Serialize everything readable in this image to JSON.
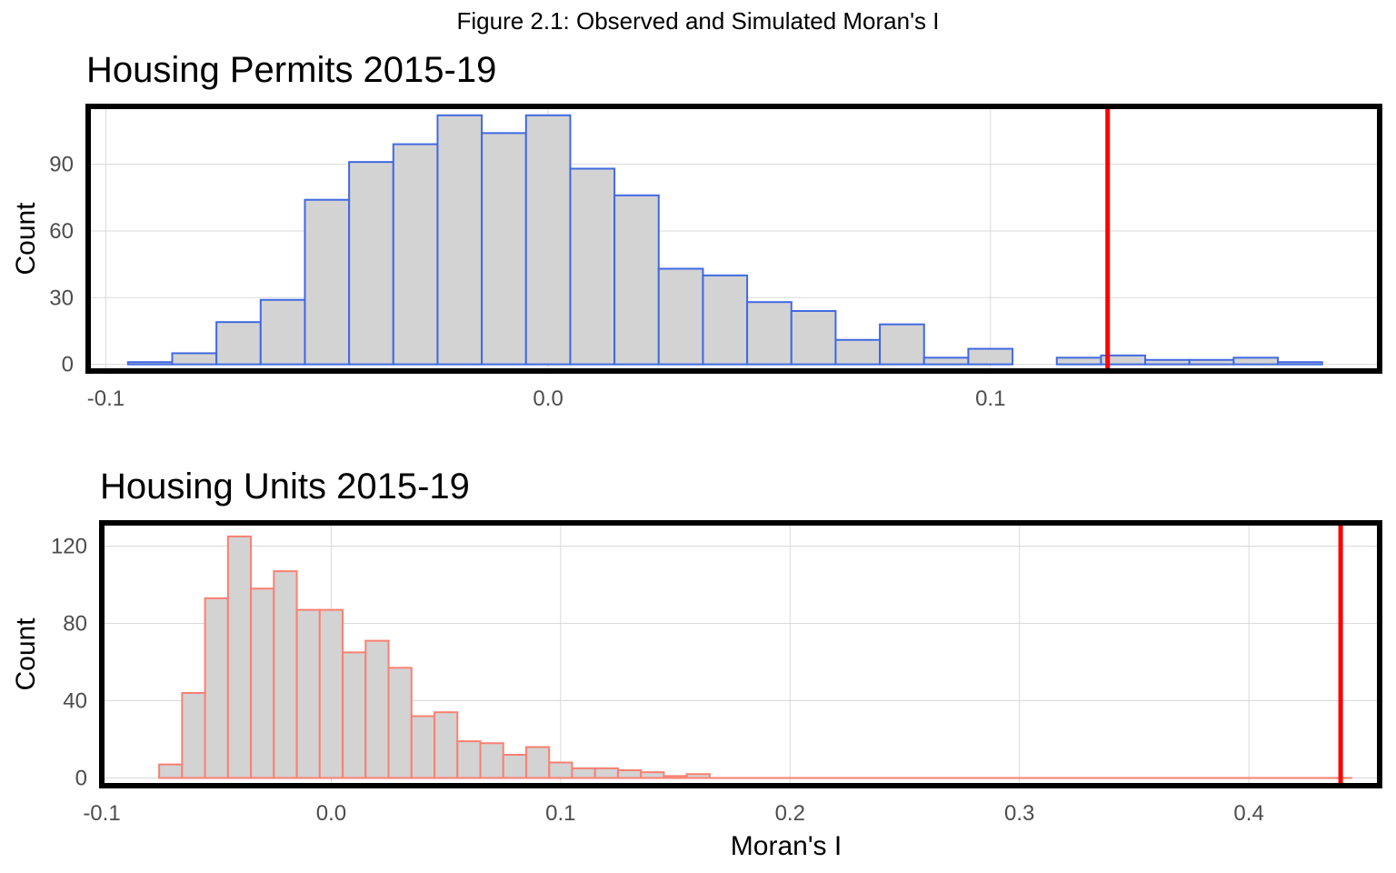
{
  "figure_title": "Figure 2.1: Observed and Simulated Moran's I",
  "chart_data": [
    {
      "type": "bar",
      "title": "Housing Permits 2015-19",
      "xlabel": "",
      "ylabel": "Count",
      "xlim": [
        -0.104,
        0.188
      ],
      "ylim": [
        -3,
        116
      ],
      "xticks": [
        -0.1,
        0.0,
        0.1
      ],
      "xtick_labels": [
        "-0.1",
        "0.0",
        "0.1"
      ],
      "yticks": [
        0,
        30,
        60,
        90
      ],
      "ytick_labels": [
        "0",
        "30",
        "60",
        "90"
      ],
      "grid": true,
      "bar_fill": "#d3d3d3",
      "bar_stroke": "#4169e1",
      "observed_color": "#ff0000",
      "observed_value": 0.1265,
      "bin_width": 0.01,
      "bin_starts": [
        -0.095,
        -0.085,
        -0.075,
        -0.065,
        -0.055,
        -0.045,
        -0.035,
        -0.025,
        -0.015,
        -0.005,
        0.005,
        0.015,
        0.025,
        0.035,
        0.045,
        0.055,
        0.065,
        0.075,
        0.085,
        0.095,
        0.105,
        0.115,
        0.125,
        0.135,
        0.145,
        0.155,
        0.165,
        0.175
      ],
      "values": [
        1,
        5,
        19,
        29,
        74,
        91,
        99,
        112,
        104,
        112,
        88,
        76,
        43,
        40,
        28,
        24,
        11,
        18,
        3,
        7,
        0,
        3,
        4,
        2,
        2,
        3,
        1,
        0
      ]
    },
    {
      "type": "bar",
      "title": "Housing Units 2015-19",
      "xlabel": "Moran's I",
      "ylabel": "Count",
      "xlim": [
        -0.1,
        0.457
      ],
      "ylim": [
        -4,
        132
      ],
      "xticks": [
        -0.1,
        0.0,
        0.1,
        0.2,
        0.3,
        0.4
      ],
      "xtick_labels": [
        "-0.1",
        "0.0",
        "0.1",
        "0.2",
        "0.3",
        "0.4"
      ],
      "yticks": [
        0,
        40,
        80,
        120
      ],
      "ytick_labels": [
        "0",
        "40",
        "80",
        "120"
      ],
      "grid": true,
      "bar_fill": "#d3d3d3",
      "bar_stroke": "#fa8072",
      "observed_color": "#ff0000",
      "observed_value": 0.44,
      "bin_width": 0.01,
      "bin_starts": [
        -0.075,
        -0.065,
        -0.055,
        -0.045,
        -0.035,
        -0.025,
        -0.015,
        -0.005,
        0.005,
        0.015,
        0.025,
        0.035,
        0.045,
        0.055,
        0.065,
        0.075,
        0.085,
        0.095,
        0.105,
        0.115,
        0.125,
        0.135,
        0.145,
        0.155
      ],
      "values": [
        7,
        44,
        93,
        125,
        98,
        107,
        87,
        87,
        65,
        71,
        57,
        32,
        34,
        19,
        18,
        12,
        16,
        8,
        5,
        5,
        4,
        3,
        1,
        2
      ],
      "tail_start": 0.165,
      "tail_end": 0.445
    }
  ]
}
